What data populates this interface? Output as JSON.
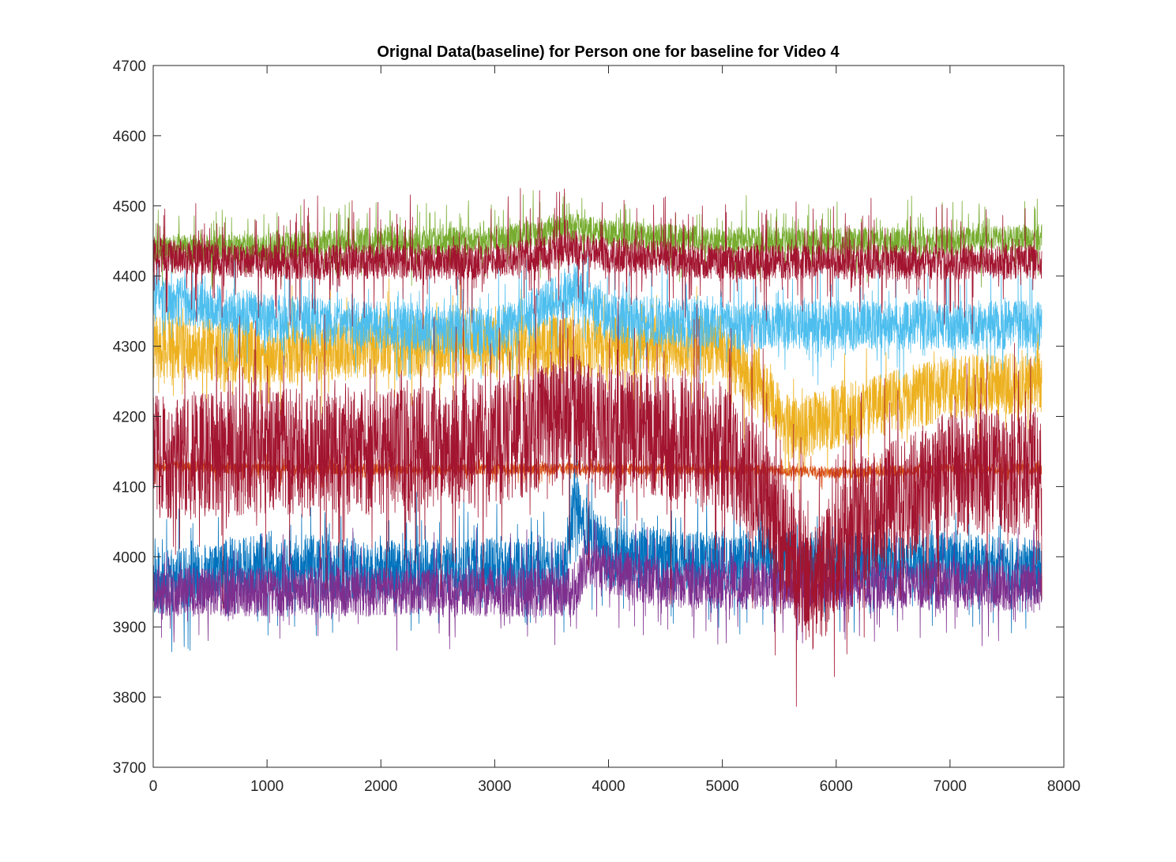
{
  "chart_data": {
    "type": "line",
    "title": "Orignal Data(baseline) for Person one for baseline for Video 4",
    "xlabel": "",
    "ylabel": "",
    "xlim": [
      0,
      8000
    ],
    "ylim": [
      3700,
      4700
    ],
    "xticks": [
      0,
      1000,
      2000,
      3000,
      4000,
      5000,
      6000,
      7000,
      8000
    ],
    "yticks": [
      3700,
      3800,
      3900,
      4000,
      4100,
      4200,
      4300,
      4400,
      4500,
      4600,
      4700
    ],
    "n_samples": 7808,
    "grid": false,
    "legend": "none",
    "series": [
      {
        "color": "#0072BD",
        "level": [
          [
            0,
            3960
          ],
          [
            1000,
            3990
          ],
          [
            2000,
            3980
          ],
          [
            3000,
            3985
          ],
          [
            3600,
            3980
          ],
          [
            3700,
            4070
          ],
          [
            4000,
            4000
          ],
          [
            5200,
            3990
          ],
          [
            5300,
            4000
          ],
          [
            6000,
            3990
          ],
          [
            7000,
            3990
          ],
          [
            7800,
            3980
          ]
        ],
        "spread": 45,
        "spikes": 70
      },
      {
        "color": "#D95319",
        "level": [
          [
            0,
            4130
          ],
          [
            1000,
            4125
          ],
          [
            2000,
            4125
          ],
          [
            3000,
            4125
          ],
          [
            4000,
            4125
          ],
          [
            5000,
            4125
          ],
          [
            6000,
            4120
          ],
          [
            7000,
            4125
          ],
          [
            7800,
            4125
          ]
        ],
        "spread": 8,
        "spikes": 20
      },
      {
        "color": "#EDB120",
        "level": [
          [
            0,
            4300
          ],
          [
            1000,
            4290
          ],
          [
            2000,
            4300
          ],
          [
            3000,
            4300
          ],
          [
            5000,
            4300
          ],
          [
            5300,
            4250
          ],
          [
            5600,
            4180
          ],
          [
            6000,
            4200
          ],
          [
            6500,
            4220
          ],
          [
            7000,
            4240
          ],
          [
            7800,
            4250
          ]
        ],
        "spread": 45,
        "spikes": 60
      },
      {
        "color": "#7E2F8E",
        "level": [
          [
            0,
            3950
          ],
          [
            1000,
            3950
          ],
          [
            2000,
            3950
          ],
          [
            3000,
            3950
          ],
          [
            3700,
            3950
          ],
          [
            3800,
            3990
          ],
          [
            4500,
            3960
          ],
          [
            5000,
            3960
          ],
          [
            6000,
            3960
          ],
          [
            7000,
            3960
          ],
          [
            7800,
            3955
          ]
        ],
        "spread": 35,
        "spikes": 60
      },
      {
        "color": "#77AC30",
        "level": [
          [
            0,
            4440
          ],
          [
            1000,
            4440
          ],
          [
            2000,
            4450
          ],
          [
            3000,
            4450
          ],
          [
            3700,
            4470
          ],
          [
            4000,
            4460
          ],
          [
            5000,
            4450
          ],
          [
            6000,
            4450
          ],
          [
            7000,
            4450
          ],
          [
            7800,
            4455
          ]
        ],
        "spread": 20,
        "spikes": 50
      },
      {
        "color": "#4DBEEE",
        "level": [
          [
            0,
            4370
          ],
          [
            1000,
            4340
          ],
          [
            2000,
            4330
          ],
          [
            3000,
            4320
          ],
          [
            3700,
            4380
          ],
          [
            4000,
            4340
          ],
          [
            5000,
            4330
          ],
          [
            6000,
            4330
          ],
          [
            7000,
            4330
          ],
          [
            7800,
            4330
          ]
        ],
        "spread": 35,
        "spikes": 60
      },
      {
        "color": "#A2142F",
        "level": [
          [
            0,
            4140
          ],
          [
            1000,
            4150
          ],
          [
            2000,
            4150
          ],
          [
            3000,
            4160
          ],
          [
            3700,
            4200
          ],
          [
            4000,
            4180
          ],
          [
            5000,
            4160
          ],
          [
            5300,
            4100
          ],
          [
            5800,
            3950
          ],
          [
            6200,
            4050
          ],
          [
            7000,
            4120
          ],
          [
            7800,
            4120
          ]
        ],
        "spread": 90,
        "spikes": 150
      },
      {
        "color": "#A2142F",
        "level": [
          [
            0,
            4430
          ],
          [
            1000,
            4420
          ],
          [
            2000,
            4420
          ],
          [
            3000,
            4420
          ],
          [
            3700,
            4440
          ],
          [
            4000,
            4430
          ],
          [
            5000,
            4420
          ],
          [
            6000,
            4420
          ],
          [
            7000,
            4420
          ],
          [
            7800,
            4420
          ]
        ],
        "spread": 25,
        "spikes": 80
      }
    ]
  }
}
